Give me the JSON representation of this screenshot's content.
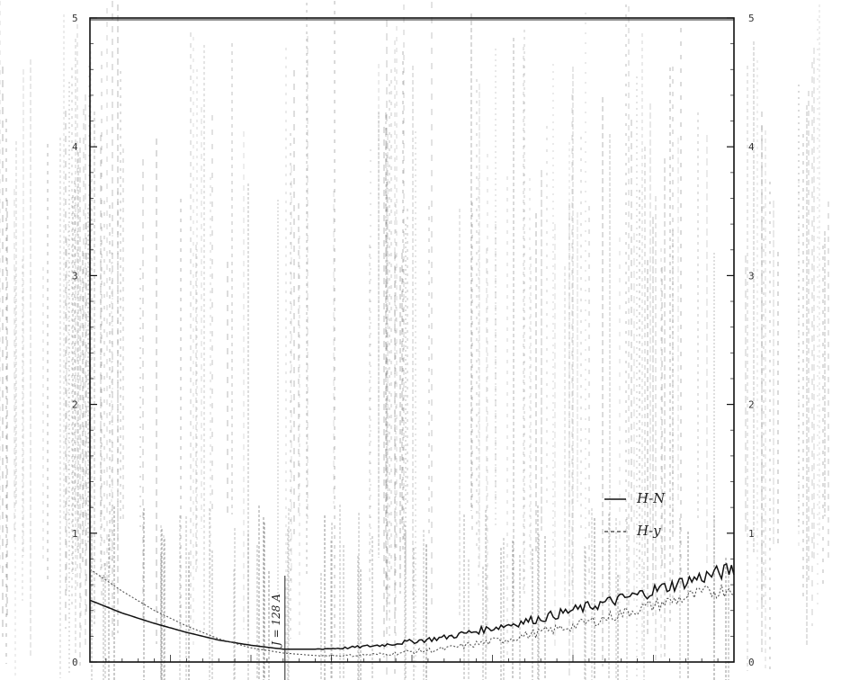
{
  "chart_data": {
    "type": "line",
    "title": "",
    "xlabel": "",
    "ylabel": "",
    "ylim": [
      0,
      5
    ],
    "xlim": [
      0,
      1
    ],
    "y_ticks": [
      "0",
      "1",
      "2",
      "3",
      "4",
      "5"
    ],
    "y_ticks_right": [
      "0",
      "1",
      "2",
      "3",
      "4",
      "5"
    ],
    "grid": true,
    "legend_position": "right",
    "annotation": "J = 128 A",
    "annotation_x": 0.3,
    "series": [
      {
        "name": "H-N",
        "style": "solid",
        "color": "#111111",
        "x": [
          0,
          0.05,
          0.1,
          0.15,
          0.2,
          0.25,
          0.3,
          0.35,
          0.4,
          0.45,
          0.5,
          0.55,
          0.6,
          0.65,
          0.7,
          0.75,
          0.8,
          0.85,
          0.9,
          0.95,
          1.0
        ],
        "y": [
          0.48,
          0.38,
          0.3,
          0.23,
          0.17,
          0.13,
          0.1,
          0.1,
          0.11,
          0.13,
          0.16,
          0.19,
          0.24,
          0.29,
          0.34,
          0.4,
          0.46,
          0.52,
          0.59,
          0.66,
          0.72
        ]
      },
      {
        "name": "H-y",
        "style": "dashed",
        "color": "#555555",
        "x": [
          0,
          0.05,
          0.1,
          0.15,
          0.2,
          0.25,
          0.3,
          0.35,
          0.4,
          0.45,
          0.5,
          0.55,
          0.6,
          0.65,
          0.7,
          0.75,
          0.8,
          0.85,
          0.9,
          0.95,
          1.0
        ],
        "y": [
          0.72,
          0.55,
          0.4,
          0.28,
          0.18,
          0.11,
          0.07,
          0.05,
          0.05,
          0.06,
          0.08,
          0.1,
          0.14,
          0.18,
          0.23,
          0.28,
          0.34,
          0.41,
          0.47,
          0.53,
          0.58
        ]
      }
    ]
  }
}
